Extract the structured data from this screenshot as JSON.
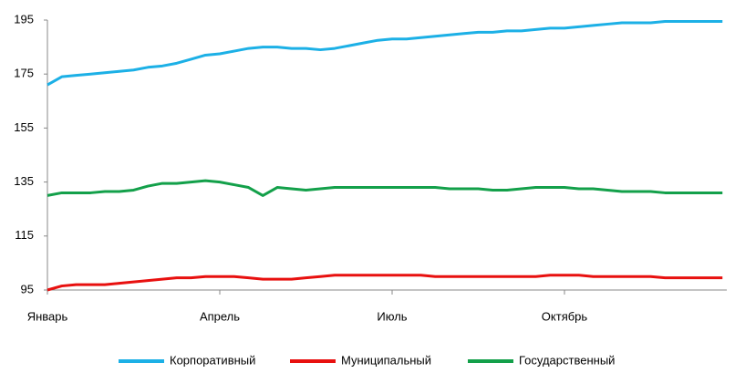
{
  "chart_data": {
    "type": "line",
    "categories": [
      "Январь",
      null,
      null,
      null,
      null,
      null,
      null,
      null,
      null,
      null,
      null,
      null,
      "Апрель",
      null,
      null,
      null,
      null,
      null,
      null,
      null,
      null,
      null,
      null,
      null,
      "Июль",
      null,
      null,
      null,
      null,
      null,
      null,
      null,
      null,
      null,
      null,
      null,
      "Октябрь",
      null,
      null,
      null,
      null,
      null,
      null,
      null,
      null,
      null,
      null,
      null
    ],
    "series": [
      {
        "name": "Корпоративный",
        "color": "#1cb0e6",
        "values": [
          171,
          174,
          174.5,
          175,
          175.5,
          176,
          176.5,
          177.5,
          178,
          179,
          180.5,
          182,
          182.5,
          183.5,
          184.5,
          185,
          185,
          184.5,
          184.5,
          184,
          184.5,
          185.5,
          186.5,
          187.5,
          188,
          188,
          188.5,
          189,
          189.5,
          190,
          190.5,
          190.5,
          191,
          191,
          191.5,
          192,
          192,
          192.5,
          193,
          193.5,
          194,
          194,
          194,
          194.5,
          194.5,
          194.5,
          194.5,
          194.5
        ]
      },
      {
        "name": "Муниципальный",
        "color": "#e8100f",
        "values": [
          95,
          96.5,
          97,
          97,
          97,
          97.5,
          98,
          98.5,
          99,
          99.5,
          99.5,
          100,
          100,
          100,
          99.5,
          99,
          99,
          99,
          99.5,
          100,
          100.5,
          100.5,
          100.5,
          100.5,
          100.5,
          100.5,
          100.5,
          100,
          100,
          100,
          100,
          100,
          100,
          100,
          100,
          100.5,
          100.5,
          100.5,
          100,
          100,
          100,
          100,
          100,
          99.5,
          99.5,
          99.5,
          99.5,
          99.5
        ]
      },
      {
        "name": "Государственный",
        "color": "#13a04a",
        "values": [
          130,
          131,
          131,
          131,
          131.5,
          131.5,
          132,
          133.5,
          134.5,
          134.5,
          135,
          135.5,
          135,
          134,
          133,
          130,
          133,
          132.5,
          132,
          132.5,
          133,
          133,
          133,
          133,
          133,
          133,
          133,
          133,
          132.5,
          132.5,
          132.5,
          132,
          132,
          132.5,
          133,
          133,
          133,
          132.5,
          132.5,
          132,
          131.5,
          131.5,
          131.5,
          131,
          131,
          131,
          131,
          131
        ]
      }
    ],
    "ylim": [
      95,
      195
    ],
    "yticks": [
      95,
      115,
      135,
      155,
      175,
      195
    ]
  }
}
